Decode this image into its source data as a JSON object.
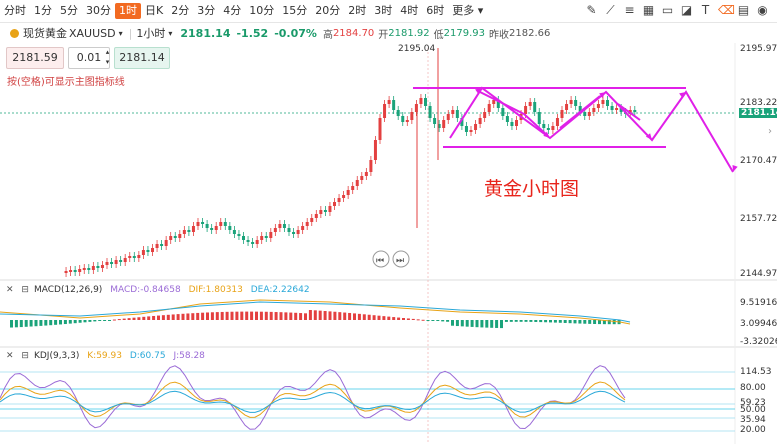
{
  "toolbar": {
    "timeframes": [
      "分时",
      "1分",
      "5分",
      "30分",
      "1时",
      "日K",
      "2分",
      "3分",
      "4分",
      "10分",
      "15分",
      "20分",
      "2时",
      "3时",
      "4时",
      "6时",
      "更多"
    ],
    "active": "1时",
    "tools": [
      "pencil-icon",
      "line-icon",
      "equal-icon",
      "grid-icon",
      "rect-icon",
      "fill-icon",
      "text-icon",
      "eraser-icon",
      "layout-icon",
      "eye-icon"
    ]
  },
  "symbol": {
    "name": "现货黄金",
    "code": "XAUUSD",
    "period": "1小时",
    "price": "2181.14",
    "change": "-1.52",
    "change_pct": "-0.07%",
    "high_label": "高",
    "high": "2184.70",
    "open_label": "开",
    "open": "2181.92",
    "low_label": "低",
    "low": "2179.93",
    "prev_label": "昨收",
    "prev": "2182.66"
  },
  "order": {
    "sell": "2181.59",
    "qty": "0.01",
    "buy": "2181.14"
  },
  "hint": "按(空格)可显示主图指标线",
  "annotation": "黄金小时图",
  "price_axis": {
    "labels": [
      "2195.97",
      "2183.22",
      "2170.47",
      "2157.72",
      "2144.97"
    ],
    "current": "2181.14",
    "peak": "2195.04"
  },
  "macd": {
    "label": "MACD(12,26,9)",
    "macd": "MACD:-0.84658",
    "dif": "DIF:1.80313",
    "dea": "DEA:2.22642",
    "axis": [
      "9.51916",
      "3.09946",
      "-3.32026"
    ]
  },
  "kdj": {
    "label": "KDJ(9,3,3)",
    "k": "K:59.93",
    "d": "D:60.75",
    "j": "J:58.28",
    "axis": [
      "114.53",
      "80.00",
      "59.23",
      "50.00",
      "35.94",
      "20.00"
    ]
  },
  "colors": {
    "up": "#e34040",
    "down": "#1aa37a",
    "accent": "#f26a21",
    "magenta": "#e020e8",
    "cyan": "#39c7e6"
  }
}
